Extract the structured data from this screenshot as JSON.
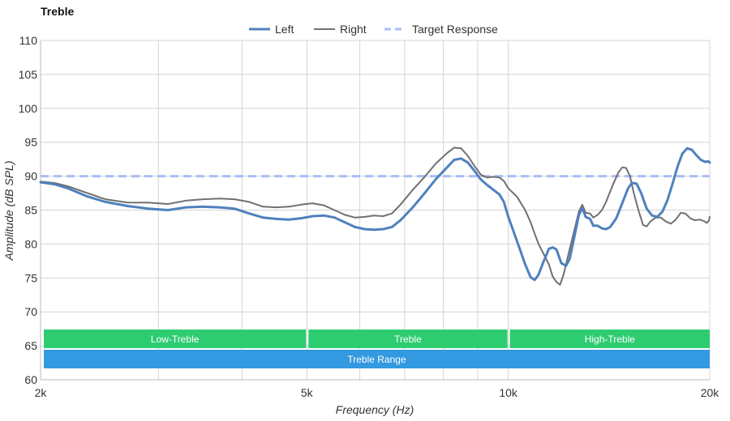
{
  "chart_data": {
    "type": "line",
    "title": "Treble",
    "xlabel": "Frequency (Hz)",
    "ylabel": "Amplitude (dB SPL)",
    "xscale": "log",
    "xlim": [
      2000,
      20000
    ],
    "ylim": [
      60,
      110
    ],
    "xticks": [
      {
        "value": 2000,
        "label": "2k"
      },
      {
        "value": 5000,
        "label": "5k"
      },
      {
        "value": 10000,
        "label": "10k"
      },
      {
        "value": 20000,
        "label": "20k"
      }
    ],
    "yticks": [
      60,
      65,
      70,
      75,
      80,
      85,
      90,
      95,
      100,
      105,
      110
    ],
    "grid": true,
    "legend_position": "top-center",
    "series": [
      {
        "name": "Left",
        "color": "#4f81bd",
        "style": "solid-thick",
        "points": [
          [
            2000,
            89.1
          ],
          [
            2100,
            88.8
          ],
          [
            2200,
            88.2
          ],
          [
            2350,
            87.0
          ],
          [
            2500,
            86.2
          ],
          [
            2700,
            85.6
          ],
          [
            2900,
            85.2
          ],
          [
            3100,
            85.0
          ],
          [
            3300,
            85.4
          ],
          [
            3500,
            85.5
          ],
          [
            3700,
            85.4
          ],
          [
            3900,
            85.2
          ],
          [
            4100,
            84.5
          ],
          [
            4300,
            83.9
          ],
          [
            4500,
            83.7
          ],
          [
            4700,
            83.6
          ],
          [
            4900,
            83.8
          ],
          [
            5100,
            84.1
          ],
          [
            5300,
            84.2
          ],
          [
            5500,
            83.9
          ],
          [
            5700,
            83.2
          ],
          [
            5900,
            82.5
          ],
          [
            6100,
            82.2
          ],
          [
            6300,
            82.1
          ],
          [
            6500,
            82.2
          ],
          [
            6700,
            82.5
          ],
          [
            6900,
            83.5
          ],
          [
            7200,
            85.4
          ],
          [
            7500,
            87.5
          ],
          [
            7800,
            89.6
          ],
          [
            8100,
            91.3
          ],
          [
            8300,
            92.4
          ],
          [
            8500,
            92.6
          ],
          [
            8700,
            92.0
          ],
          [
            8900,
            90.8
          ],
          [
            9100,
            89.5
          ],
          [
            9300,
            88.7
          ],
          [
            9500,
            88.0
          ],
          [
            9700,
            87.3
          ],
          [
            9850,
            86.2
          ],
          [
            10000,
            84.0
          ],
          [
            10300,
            80.5
          ],
          [
            10600,
            77.0
          ],
          [
            10800,
            75.1
          ],
          [
            10950,
            74.7
          ],
          [
            11100,
            75.5
          ],
          [
            11300,
            77.5
          ],
          [
            11500,
            79.3
          ],
          [
            11650,
            79.5
          ],
          [
            11800,
            79.2
          ],
          [
            12000,
            77.2
          ],
          [
            12200,
            76.8
          ],
          [
            12350,
            77.8
          ],
          [
            12550,
            81.0
          ],
          [
            12750,
            84.3
          ],
          [
            12900,
            85.3
          ],
          [
            13050,
            84.0
          ],
          [
            13250,
            83.7
          ],
          [
            13400,
            82.7
          ],
          [
            13600,
            82.7
          ],
          [
            13800,
            82.3
          ],
          [
            14000,
            82.2
          ],
          [
            14200,
            82.5
          ],
          [
            14500,
            83.8
          ],
          [
            14800,
            86.0
          ],
          [
            15100,
            88.2
          ],
          [
            15300,
            89.0
          ],
          [
            15550,
            88.9
          ],
          [
            15800,
            87.5
          ],
          [
            16100,
            85.2
          ],
          [
            16400,
            84.2
          ],
          [
            16700,
            84.0
          ],
          [
            17000,
            84.8
          ],
          [
            17300,
            86.5
          ],
          [
            17600,
            88.9
          ],
          [
            17900,
            91.4
          ],
          [
            18200,
            93.3
          ],
          [
            18500,
            94.1
          ],
          [
            18800,
            93.9
          ],
          [
            19100,
            93.1
          ],
          [
            19400,
            92.4
          ],
          [
            19700,
            92.1
          ],
          [
            19900,
            92.2
          ],
          [
            20000,
            92.0
          ]
        ]
      },
      {
        "name": "Right",
        "color": "#707070",
        "style": "solid-thin",
        "points": [
          [
            2000,
            89.2
          ],
          [
            2100,
            89.0
          ],
          [
            2200,
            88.5
          ],
          [
            2350,
            87.5
          ],
          [
            2500,
            86.6
          ],
          [
            2700,
            86.1
          ],
          [
            2900,
            86.1
          ],
          [
            3100,
            85.9
          ],
          [
            3300,
            86.4
          ],
          [
            3500,
            86.6
          ],
          [
            3700,
            86.7
          ],
          [
            3900,
            86.6
          ],
          [
            4100,
            86.2
          ],
          [
            4300,
            85.5
          ],
          [
            4500,
            85.4
          ],
          [
            4700,
            85.5
          ],
          [
            4900,
            85.8
          ],
          [
            5100,
            86.0
          ],
          [
            5300,
            85.7
          ],
          [
            5500,
            85.0
          ],
          [
            5700,
            84.3
          ],
          [
            5900,
            83.9
          ],
          [
            6100,
            84.0
          ],
          [
            6300,
            84.2
          ],
          [
            6500,
            84.1
          ],
          [
            6700,
            84.5
          ],
          [
            6900,
            85.8
          ],
          [
            7200,
            88.0
          ],
          [
            7500,
            89.9
          ],
          [
            7800,
            91.9
          ],
          [
            8100,
            93.4
          ],
          [
            8300,
            94.2
          ],
          [
            8500,
            94.1
          ],
          [
            8700,
            93.0
          ],
          [
            8900,
            91.5
          ],
          [
            9100,
            90.2
          ],
          [
            9300,
            89.8
          ],
          [
            9500,
            89.9
          ],
          [
            9700,
            89.8
          ],
          [
            9850,
            89.3
          ],
          [
            10000,
            88.2
          ],
          [
            10300,
            87.0
          ],
          [
            10600,
            85.0
          ],
          [
            10800,
            83.2
          ],
          [
            10950,
            81.5
          ],
          [
            11100,
            80.0
          ],
          [
            11300,
            78.5
          ],
          [
            11500,
            77.0
          ],
          [
            11650,
            75.2
          ],
          [
            11800,
            74.4
          ],
          [
            11950,
            74.0
          ],
          [
            12100,
            75.5
          ],
          [
            12300,
            78.5
          ],
          [
            12550,
            82.0
          ],
          [
            12750,
            84.8
          ],
          [
            12900,
            85.8
          ],
          [
            13050,
            84.6
          ],
          [
            13250,
            84.5
          ],
          [
            13400,
            83.9
          ],
          [
            13600,
            84.3
          ],
          [
            13800,
            85.0
          ],
          [
            14000,
            86.2
          ],
          [
            14300,
            88.5
          ],
          [
            14600,
            90.5
          ],
          [
            14800,
            91.3
          ],
          [
            15000,
            91.2
          ],
          [
            15200,
            90.0
          ],
          [
            15400,
            87.5
          ],
          [
            15650,
            85.0
          ],
          [
            15900,
            82.8
          ],
          [
            16100,
            82.6
          ],
          [
            16300,
            83.3
          ],
          [
            16600,
            83.9
          ],
          [
            16900,
            83.9
          ],
          [
            17200,
            83.3
          ],
          [
            17500,
            83.0
          ],
          [
            17800,
            83.6
          ],
          [
            18100,
            84.6
          ],
          [
            18400,
            84.5
          ],
          [
            18700,
            83.8
          ],
          [
            19000,
            83.5
          ],
          [
            19300,
            83.6
          ],
          [
            19600,
            83.4
          ],
          [
            19800,
            83.1
          ],
          [
            19950,
            83.5
          ],
          [
            20000,
            84.0
          ]
        ]
      },
      {
        "name": "Target Response",
        "color": "#aabcf7",
        "style": "dashed",
        "points": [
          [
            2000,
            90.0
          ],
          [
            20000,
            90.0
          ]
        ]
      }
    ],
    "bands": [
      {
        "label": "Low-Treble",
        "from": 2000,
        "to": 5000,
        "color": "#2ecc71",
        "row": 0
      },
      {
        "label": "Treble",
        "from": 5000,
        "to": 10000,
        "color": "#2ecc71",
        "row": 0
      },
      {
        "label": "High-Treble",
        "from": 10000,
        "to": 20000,
        "color": "#2ecc71",
        "row": 0
      },
      {
        "label": "Treble Range",
        "from": 2000,
        "to": 20000,
        "color": "#3399e0",
        "row": 1
      }
    ]
  }
}
